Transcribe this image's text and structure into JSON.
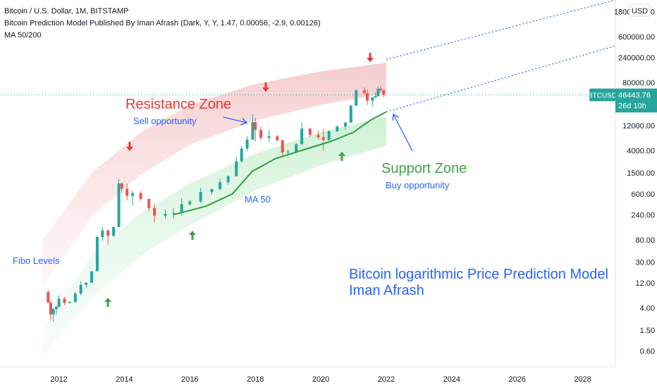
{
  "header": {
    "symbol_line": "Bitcoin / U.S. Dollar, 1M, BITSTAMP",
    "indicator_line": "Bitcoin Prediction Model Published By Iman Afrash (Dark, Y, Y, 1.47, 0.00056, -2.9, 0.00126)",
    "ma_line": "MA 50/200"
  },
  "currency": "USD",
  "price_tag": {
    "symbol": "BTCUSD",
    "price": "46443.76",
    "countdown": "26d 10h",
    "color": "#26a69a"
  },
  "annotations": {
    "resistance_title": "Resistance Zone",
    "resistance_sub": "Sell opportunity",
    "support_title": "Support Zone",
    "support_sub": "Buy opportunity",
    "fibo": "Fibo Levels",
    "ma50": "MA 50",
    "model_title_1": "Bitcoin logarithmic Price Prediction Model",
    "model_title_2": "Iman Afrash"
  },
  "colors": {
    "up": "#26a69a",
    "down": "#ef5350",
    "ma": "#2e9e44",
    "annotation_red": "#e53935",
    "annotation_green": "#43a047",
    "annotation_blue": "#2962ff"
  },
  "chart_data": {
    "type": "candlestick",
    "title": "Bitcoin / U.S. Dollar, 1M, BITSTAMP",
    "y_scale": "log",
    "ylim": [
      0.3,
      3000000
    ],
    "xlim": [
      2010.2,
      2029.0
    ],
    "y_ticks": [
      "1800000.00",
      "600000.00",
      "240000.00",
      "80000.00",
      "12000.00",
      "4000.00",
      "1500.00",
      "600.00",
      "240.00",
      "80.00",
      "30.00",
      "12.00",
      "4.00",
      "1.50",
      "0.60"
    ],
    "x_ticks": [
      "2012",
      "2014",
      "2016",
      "2018",
      "2020",
      "2022",
      "2024",
      "2026",
      "2028"
    ],
    "series": [
      {
        "name": "BTCUSD",
        "ohlc": [
          [
            2011.67,
            8,
            9,
            5,
            5
          ],
          [
            2011.75,
            5,
            5.5,
            2.3,
            3
          ],
          [
            2011.83,
            3,
            4,
            2.2,
            3.8
          ],
          [
            2011.92,
            3.8,
            4.5,
            3.0,
            4.2
          ],
          [
            2012.0,
            4.2,
            7,
            4,
            6
          ],
          [
            2012.17,
            6,
            6.5,
            4.5,
            5
          ],
          [
            2012.33,
            5,
            5.3,
            4.8,
            5.2
          ],
          [
            2012.5,
            5.2,
            8,
            5,
            7.5
          ],
          [
            2012.67,
            7.5,
            13,
            7,
            11
          ],
          [
            2012.83,
            11,
            12.5,
            9.5,
            12
          ],
          [
            2013.0,
            12,
            20,
            12,
            20
          ],
          [
            2013.17,
            20,
            95,
            20,
            90
          ],
          [
            2013.33,
            90,
            140,
            75,
            120
          ],
          [
            2013.5,
            120,
            125,
            65,
            95
          ],
          [
            2013.67,
            95,
            140,
            90,
            140
          ],
          [
            2013.83,
            140,
            1150,
            140,
            950
          ],
          [
            2013.92,
            950,
            1000,
            600,
            750
          ],
          [
            2014.08,
            750,
            950,
            450,
            550
          ],
          [
            2014.25,
            550,
            680,
            360,
            620
          ],
          [
            2014.5,
            620,
            680,
            450,
            480
          ],
          [
            2014.75,
            480,
            480,
            280,
            320
          ],
          [
            2014.92,
            320,
            380,
            170,
            230
          ],
          [
            2015.25,
            230,
            300,
            200,
            250
          ],
          [
            2015.5,
            250,
            320,
            200,
            260
          ],
          [
            2015.75,
            260,
            500,
            230,
            380
          ],
          [
            2016.0,
            380,
            460,
            360,
            430
          ],
          [
            2016.33,
            430,
            780,
            400,
            650
          ],
          [
            2016.67,
            650,
            760,
            580,
            740
          ],
          [
            2016.92,
            740,
            1150,
            700,
            1000
          ],
          [
            2017.17,
            1000,
            1350,
            900,
            1300
          ],
          [
            2017.42,
            1300,
            3000,
            1300,
            2500
          ],
          [
            2017.58,
            2500,
            5000,
            2400,
            4400
          ],
          [
            2017.75,
            4400,
            7500,
            4000,
            6500
          ],
          [
            2017.92,
            6500,
            19700,
            6500,
            14000
          ],
          [
            2018.0,
            14000,
            17000,
            6000,
            10000
          ],
          [
            2018.17,
            10000,
            11500,
            6500,
            7000
          ],
          [
            2018.42,
            7000,
            10000,
            5800,
            7500
          ],
          [
            2018.67,
            7500,
            8000,
            6000,
            6300
          ],
          [
            2018.83,
            6300,
            6500,
            3200,
            3700
          ],
          [
            2019.0,
            3700,
            4200,
            3300,
            3800
          ],
          [
            2019.25,
            3800,
            5600,
            3700,
            5300
          ],
          [
            2019.42,
            5300,
            13800,
            5200,
            10500
          ],
          [
            2019.67,
            10500,
            11000,
            7300,
            8000
          ],
          [
            2019.92,
            8000,
            9600,
            6500,
            7200
          ],
          [
            2020.08,
            7200,
            10500,
            4000,
            6400
          ],
          [
            2020.25,
            6400,
            9800,
            6200,
            9400
          ],
          [
            2020.5,
            9400,
            12000,
            9000,
            11600
          ],
          [
            2020.75,
            11600,
            14000,
            10000,
            13800
          ],
          [
            2020.92,
            13800,
            29000,
            13500,
            29000
          ],
          [
            2021.08,
            29000,
            58000,
            28000,
            57000
          ],
          [
            2021.33,
            57000,
            64800,
            47000,
            50000
          ],
          [
            2021.42,
            50000,
            59000,
            30000,
            36000
          ],
          [
            2021.58,
            36000,
            42000,
            29000,
            41500
          ],
          [
            2021.67,
            41500,
            52000,
            40000,
            43800
          ],
          [
            2021.75,
            43800,
            67000,
            43000,
            61000
          ],
          [
            2021.83,
            61000,
            69000,
            53000,
            57000
          ],
          [
            2021.92,
            57000,
            59000,
            42000,
            46443
          ]
        ]
      }
    ],
    "ma50": [
      [
        2015.5,
        240
      ],
      [
        2016.5,
        350
      ],
      [
        2017.3,
        600
      ],
      [
        2017.9,
        1600
      ],
      [
        2018.6,
        2800
      ],
      [
        2019.5,
        4200
      ],
      [
        2020.3,
        6000
      ],
      [
        2021.0,
        9000
      ],
      [
        2021.5,
        15000
      ],
      [
        2022.0,
        22000
      ]
    ],
    "resistance_band": {
      "upper": [
        [
          2011.5,
          80
        ],
        [
          2013.0,
          1500
        ],
        [
          2014.5,
          9000
        ],
        [
          2016.0,
          30000
        ],
        [
          2018.0,
          75000
        ],
        [
          2020.0,
          130000
        ],
        [
          2022.0,
          190000
        ]
      ],
      "lower": [
        [
          2011.5,
          10
        ],
        [
          2013.0,
          220
        ],
        [
          2014.5,
          1400
        ],
        [
          2016.0,
          5200
        ],
        [
          2018.0,
          15000
        ],
        [
          2020.0,
          30000
        ],
        [
          2022.0,
          50000
        ]
      ]
    },
    "support_band": {
      "upper": [
        [
          2011.5,
          1.5
        ],
        [
          2013.0,
          40
        ],
        [
          2014.5,
          260
        ],
        [
          2016.0,
          950
        ],
        [
          2018.0,
          3500
        ],
        [
          2020.0,
          9000
        ],
        [
          2022.0,
          18000
        ]
      ],
      "lower": [
        [
          2011.5,
          0.5
        ],
        [
          2013.0,
          6
        ],
        [
          2014.5,
          40
        ],
        [
          2016.0,
          150
        ],
        [
          2018.0,
          700
        ],
        [
          2020.0,
          2100
        ],
        [
          2022.0,
          5000
        ]
      ]
    },
    "projection_upper": [
      [
        2022.0,
        220000
      ],
      [
        2029.0,
        3000000
      ]
    ],
    "projection_lower": [
      [
        2022.0,
        22000
      ],
      [
        2029.0,
        400000
      ]
    ],
    "last_price": 46443.76
  }
}
